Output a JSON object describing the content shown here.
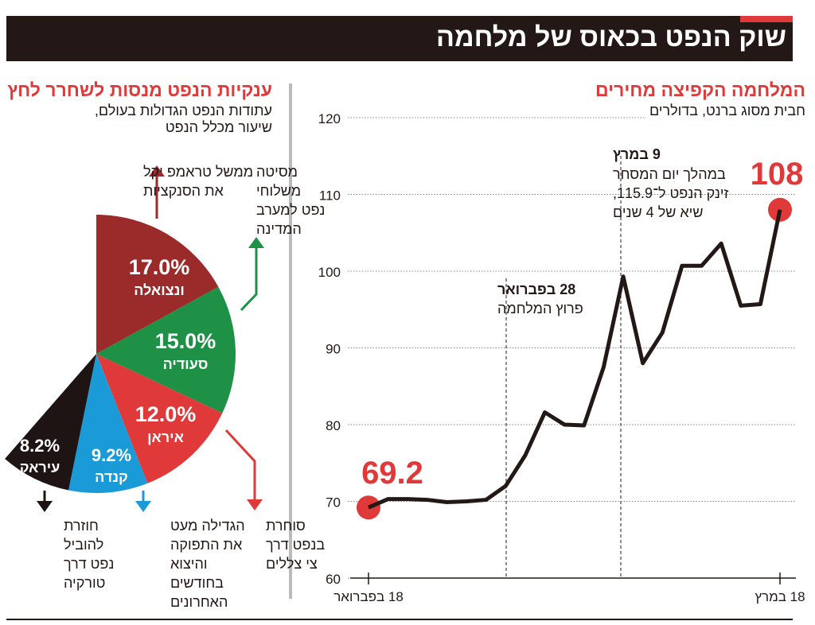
{
  "title": "שוק הנפט בכאוס של מלחמה",
  "colors": {
    "header": "#231815",
    "accent": "#e0393a"
  },
  "chart_data": [
    {
      "type": "line",
      "title": "המלחמה הקפיצה מחירים",
      "subtitle": "חבית מסוג ברנט, בדולרים",
      "ylim": [
        60,
        120
      ],
      "yticks": [
        60,
        70,
        80,
        90,
        100,
        110,
        120
      ],
      "grid": "dotted horizontal",
      "xtick_labels": [
        "18 בפברואר",
        "18 במרץ"
      ],
      "values": [
        69.2,
        70.3,
        70.3,
        70.2,
        69.9,
        70.0,
        70.2,
        72.0,
        76.0,
        81.6,
        80.0,
        79.9,
        87.5,
        99.3,
        88.0,
        92.0,
        100.7,
        100.7,
        103.6,
        95.5,
        95.7,
        108
      ],
      "start_label": "69.2",
      "end_label": "108",
      "annotations": [
        {
          "title": "28 בפברואר",
          "text": "פרוץ המלחמה"
        },
        {
          "title": "9 במרץ",
          "lines": [
            "במהלך יום המסחר",
            "זינק הנפט ל־115.9,",
            "שיא של 4 שנים"
          ]
        }
      ],
      "color": "#231815",
      "highlight": "#e0393a"
    },
    {
      "type": "pie",
      "title": "ענקיות הנפט מנסות לשחרר לחץ",
      "subtitle": [
        "עתודות הנפט הגדולות בעולם,",
        "שיעור מכלל הנפט"
      ],
      "slices": [
        {
          "name": "ונצואלה",
          "value": 17.0,
          "label": "17.0%",
          "color": "#9b2a2a",
          "arrow": "up",
          "note": [
            "ממשל טראמפ יקל",
            "את הסנקציות"
          ]
        },
        {
          "name": "סעודיה",
          "value": 15.0,
          "label": "15.0%",
          "color": "#1e9146",
          "arrow": "up",
          "note": [
            "מסיטה",
            "משלוחי",
            "נפט למערב",
            "המדינה"
          ]
        },
        {
          "name": "איראן",
          "value": 12.0,
          "label": "12.0%",
          "color": "#e0393a",
          "arrow": "down",
          "note": [
            "סוחרת",
            "בנפט דרך",
            "צי צללים"
          ]
        },
        {
          "name": "קנדה",
          "value": 9.2,
          "label": "9.2%",
          "color": "#1a9bd7",
          "arrow": "down",
          "note": [
            "הגדילה מעט",
            "את התפוקה",
            "והיצוא",
            "בחודשים",
            "האחרונים"
          ]
        },
        {
          "name": "עיראק",
          "value": 8.2,
          "label": "8.2%",
          "color": "#1e1414",
          "arrow": "down",
          "note": [
            "חוזרת",
            "להוביל",
            "נפט דרך",
            "טורקיה"
          ]
        }
      ]
    }
  ]
}
